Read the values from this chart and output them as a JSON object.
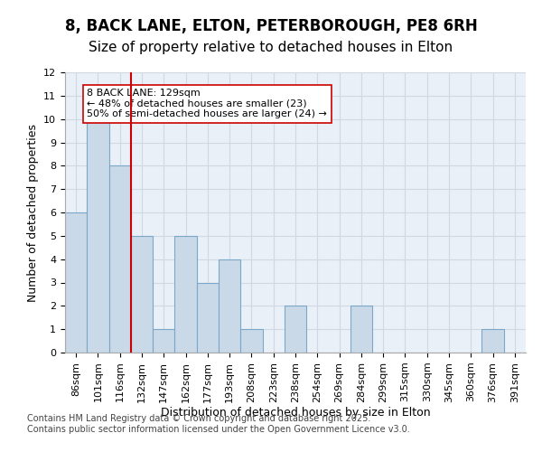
{
  "title_line1": "8, BACK LANE, ELTON, PETERBOROUGH, PE8 6RH",
  "title_line2": "Size of property relative to detached houses in Elton",
  "xlabel": "Distribution of detached houses by size in Elton",
  "ylabel": "Number of detached properties",
  "bins": [
    "86sqm",
    "101sqm",
    "116sqm",
    "132sqm",
    "147sqm",
    "162sqm",
    "177sqm",
    "193sqm",
    "208sqm",
    "223sqm",
    "238sqm",
    "254sqm",
    "269sqm",
    "284sqm",
    "299sqm",
    "315sqm",
    "330sqm",
    "345sqm",
    "360sqm",
    "376sqm",
    "391sqm"
  ],
  "values": [
    6,
    10,
    8,
    5,
    1,
    5,
    3,
    4,
    1,
    0,
    2,
    0,
    0,
    2,
    0,
    0,
    0,
    0,
    0,
    1,
    0
  ],
  "bar_color": "#c9d9e8",
  "bar_edge_color": "#7ba7c9",
  "vline_x_index": 2.5,
  "vline_color": "#cc0000",
  "annotation_text": "8 BACK LANE: 129sqm\n← 48% of detached houses are smaller (23)\n50% of semi-detached houses are larger (24) →",
  "annotation_box_color": "#ffffff",
  "annotation_box_edge": "#cc0000",
  "ylim": [
    0,
    12
  ],
  "yticks": [
    0,
    1,
    2,
    3,
    4,
    5,
    6,
    7,
    8,
    9,
    10,
    11,
    12
  ],
  "grid_color": "#d0d8e4",
  "background_color": "#eaf0f8",
  "footer_text": "Contains HM Land Registry data © Crown copyright and database right 2025.\nContains public sector information licensed under the Open Government Licence v3.0.",
  "title_fontsize": 12,
  "subtitle_fontsize": 11,
  "axis_label_fontsize": 9,
  "tick_fontsize": 8,
  "annotation_fontsize": 8,
  "footer_fontsize": 7
}
